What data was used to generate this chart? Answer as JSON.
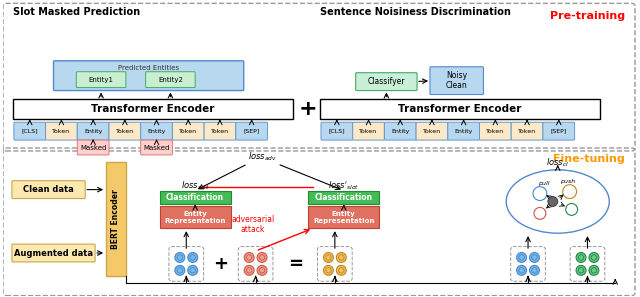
{
  "fig_width": 6.4,
  "fig_height": 2.97,
  "dpi": 100,
  "bg_color": "#ffffff",
  "pre_training_label": "Pre-training",
  "pre_training_color": "#ff0000",
  "fine_tuning_label": "Fine-tuning",
  "fine_tuning_color": "#ff9900",
  "top_section_title_left": "Slot Masked Prediction",
  "top_section_title_right": "Sentence Noisiness Discrimination",
  "transformer_label": "Transformer Encoder",
  "bert_label": "BERT Encoder",
  "classification_color": "#4caf50",
  "entity_rep_color": "#e07060",
  "clean_data_fc": "#fde9b0",
  "bert_encoder_color": "#f5c96a",
  "token_blue": "#b8d8f0",
  "token_orange": "#fde8c8",
  "predicted_entities_fc": "#b8d8f0",
  "entity_green_fc": "#c8f0d0",
  "masked_fc": "#ffd0cc",
  "masked_ec": "#e08080",
  "classifier_fc": "#c8f0d8",
  "noisy_clean_fc": "#b8d8f0",
  "circle_blue": "#7ab8e8",
  "circle_blue_edge": "#4488cc",
  "circle_pink": "#f0a090",
  "circle_pink_edge": "#cc5544",
  "circle_orange": "#f0c060",
  "circle_orange_edge": "#c08820",
  "circle_green": "#68c888",
  "circle_green_edge": "#228844"
}
